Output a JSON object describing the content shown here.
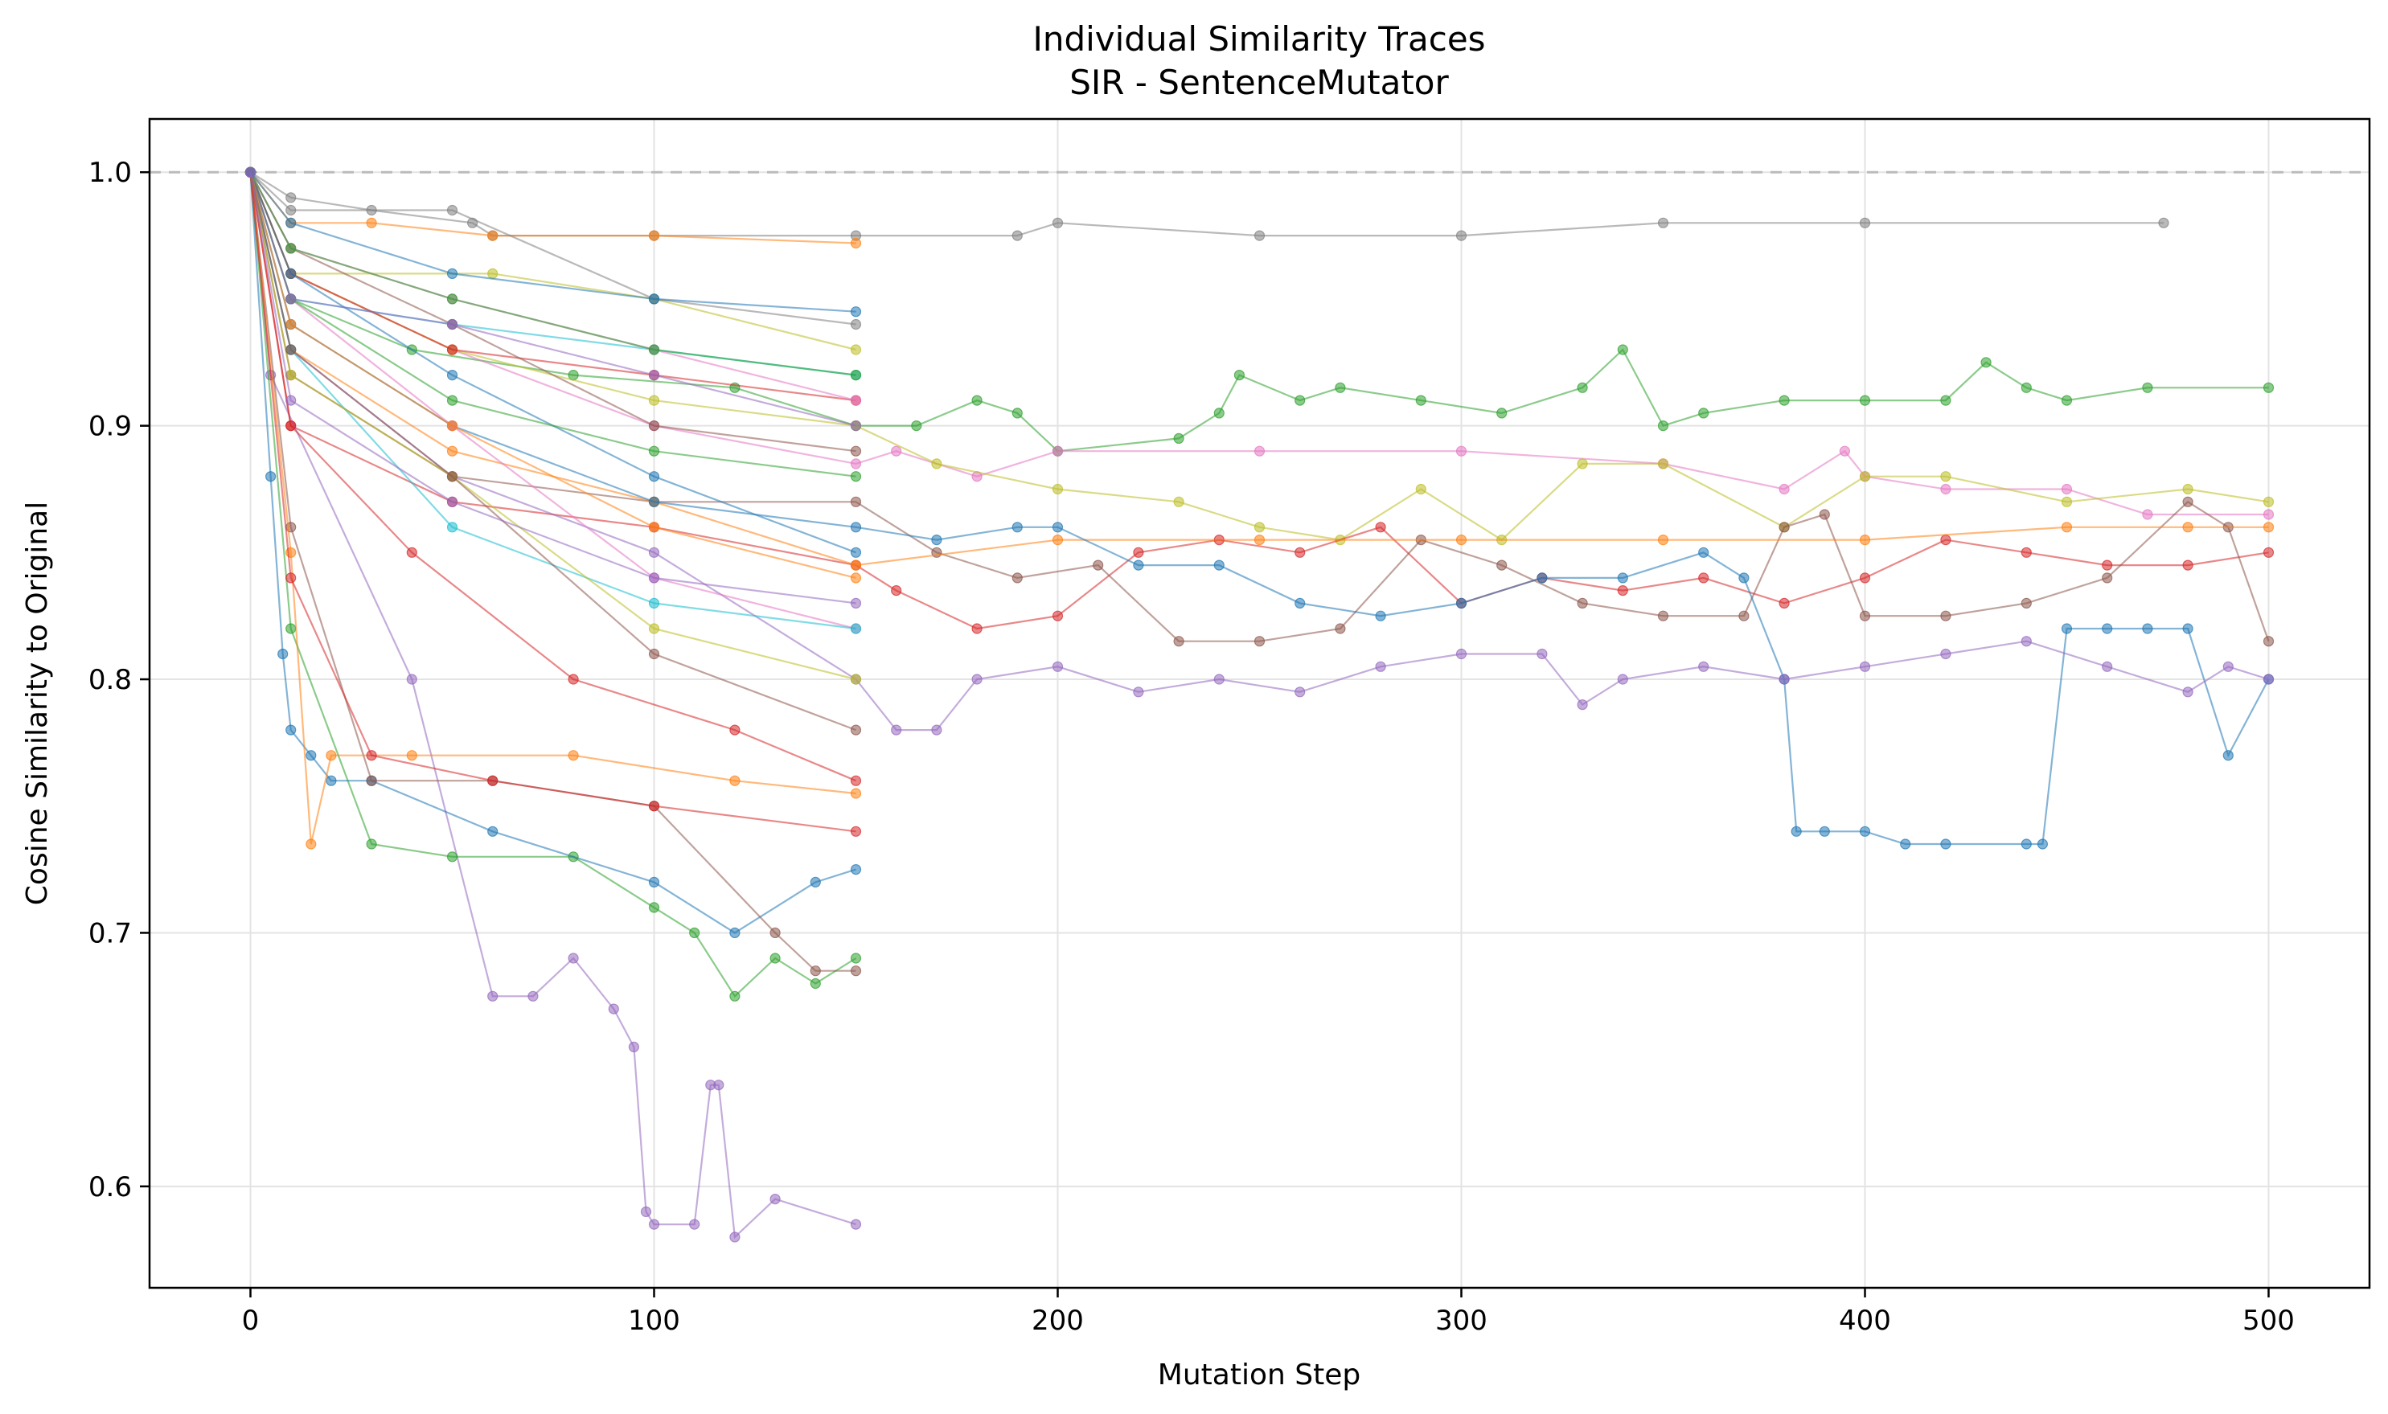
{
  "chart_data": {
    "type": "line",
    "title": "Individual Similarity Traces",
    "subtitle": "SIR - SentenceMutator",
    "xlabel": "Mutation Step",
    "ylabel": "Cosine Similarity to Original",
    "xlim": [
      -25,
      525
    ],
    "ylim": [
      0.56,
      1.021
    ],
    "xticks": [
      0,
      100,
      200,
      300,
      400,
      500
    ],
    "yticks": [
      0.6,
      0.7,
      0.8,
      0.9,
      1.0
    ],
    "xtick_labels": [
      "0",
      "100",
      "200",
      "300",
      "400",
      "500"
    ],
    "ytick_labels": [
      "0.6",
      "0.7",
      "0.8",
      "0.9",
      "1.0"
    ],
    "grid": true,
    "reference_line": {
      "y": 1.0,
      "style": "dashed",
      "color": "#bbbbbb"
    },
    "colors": [
      "#1f77b4",
      "#ff7f0e",
      "#2ca02c",
      "#d62728",
      "#9467bd",
      "#8c564b",
      "#e377c2",
      "#7f7f7f",
      "#bcbd22",
      "#17becf"
    ],
    "series": [
      {
        "color": "#7f7f7f",
        "x": [
          0,
          10,
          30,
          55,
          60,
          100,
          150,
          190,
          200,
          250,
          300,
          350,
          400,
          474
        ],
        "y": [
          1.0,
          0.99,
          0.985,
          0.98,
          0.975,
          0.975,
          0.975,
          0.975,
          0.98,
          0.975,
          0.975,
          0.98,
          0.98,
          0.98
        ]
      },
      {
        "color": "#2ca02c",
        "x": [
          0,
          10,
          40,
          80,
          120,
          150,
          165,
          180,
          190,
          200,
          230,
          240,
          245,
          260,
          270,
          290,
          310,
          330,
          340,
          350,
          360,
          380,
          400,
          420,
          430,
          440,
          450,
          470,
          500
        ],
        "y": [
          1.0,
          0.95,
          0.93,
          0.92,
          0.915,
          0.9,
          0.9,
          0.91,
          0.905,
          0.89,
          0.895,
          0.905,
          0.92,
          0.91,
          0.915,
          0.91,
          0.905,
          0.915,
          0.93,
          0.9,
          0.905,
          0.91,
          0.91,
          0.91,
          0.925,
          0.915,
          0.91,
          0.915,
          0.915
        ]
      },
      {
        "color": "#e377c2",
        "x": [
          0,
          10,
          50,
          100,
          150,
          160,
          180,
          200,
          250,
          300,
          350,
          380,
          395,
          400,
          420,
          450,
          470,
          500
        ],
        "y": [
          1.0,
          0.96,
          0.93,
          0.9,
          0.885,
          0.89,
          0.88,
          0.89,
          0.89,
          0.89,
          0.885,
          0.875,
          0.89,
          0.88,
          0.875,
          0.875,
          0.865,
          0.865
        ]
      },
      {
        "color": "#bcbd22",
        "x": [
          0,
          10,
          50,
          100,
          150,
          170,
          200,
          230,
          250,
          270,
          290,
          310,
          330,
          350,
          380,
          400,
          420,
          450,
          480,
          500
        ],
        "y": [
          1.0,
          0.96,
          0.93,
          0.91,
          0.9,
          0.885,
          0.875,
          0.87,
          0.86,
          0.855,
          0.875,
          0.855,
          0.885,
          0.885,
          0.86,
          0.88,
          0.88,
          0.87,
          0.875,
          0.87
        ]
      },
      {
        "color": "#d62728",
        "x": [
          0,
          10,
          50,
          100,
          150,
          160,
          180,
          200,
          220,
          240,
          260,
          280,
          300,
          320,
          340,
          360,
          380,
          400,
          420,
          440,
          460,
          480,
          500
        ],
        "y": [
          1.0,
          0.9,
          0.87,
          0.86,
          0.845,
          0.835,
          0.82,
          0.825,
          0.85,
          0.855,
          0.85,
          0.86,
          0.83,
          0.84,
          0.835,
          0.84,
          0.83,
          0.84,
          0.855,
          0.85,
          0.845,
          0.845,
          0.85
        ]
      },
      {
        "color": "#8c564b",
        "x": [
          0,
          10,
          50,
          100,
          150,
          170,
          190,
          210,
          230,
          250,
          270,
          290,
          310,
          330,
          350,
          370,
          380,
          390,
          400,
          420,
          440,
          460,
          480,
          490,
          500
        ],
        "y": [
          1.0,
          0.92,
          0.88,
          0.87,
          0.87,
          0.85,
          0.84,
          0.845,
          0.815,
          0.815,
          0.82,
          0.855,
          0.845,
          0.83,
          0.825,
          0.825,
          0.86,
          0.865,
          0.825,
          0.825,
          0.83,
          0.84,
          0.87,
          0.86,
          0.815
        ]
      },
      {
        "color": "#ff7f0e",
        "x": [
          0,
          10,
          50,
          100,
          150,
          200,
          250,
          300,
          350,
          400,
          450,
          480,
          500
        ],
        "y": [
          1.0,
          0.93,
          0.89,
          0.87,
          0.845,
          0.855,
          0.855,
          0.855,
          0.855,
          0.855,
          0.86,
          0.86,
          0.86
        ]
      },
      {
        "color": "#1f77b4",
        "x": [
          0,
          10,
          50,
          100,
          150,
          170,
          190,
          200,
          220,
          240,
          260,
          280,
          300,
          320,
          340,
          360,
          370,
          380,
          383,
          390,
          400,
          410,
          420,
          440,
          444,
          450,
          460,
          470,
          480,
          490,
          500
        ],
        "y": [
          1.0,
          0.94,
          0.9,
          0.87,
          0.86,
          0.855,
          0.86,
          0.86,
          0.845,
          0.845,
          0.83,
          0.825,
          0.83,
          0.84,
          0.84,
          0.85,
          0.84,
          0.8,
          0.74,
          0.74,
          0.74,
          0.735,
          0.735,
          0.735,
          0.735,
          0.82,
          0.82,
          0.82,
          0.82,
          0.77,
          0.8
        ]
      },
      {
        "color": "#9467bd",
        "x": [
          0,
          10,
          50,
          100,
          150,
          160,
          170,
          180,
          200,
          220,
          240,
          260,
          280,
          300,
          320,
          330,
          340,
          360,
          380,
          400,
          420,
          440,
          460,
          480,
          490,
          500
        ],
        "y": [
          1.0,
          0.93,
          0.88,
          0.85,
          0.8,
          0.78,
          0.78,
          0.8,
          0.805,
          0.795,
          0.8,
          0.795,
          0.805,
          0.81,
          0.81,
          0.79,
          0.8,
          0.805,
          0.8,
          0.805,
          0.81,
          0.815,
          0.805,
          0.795,
          0.805,
          0.8
        ]
      },
      {
        "color": "#9467bd",
        "x": [
          0,
          5,
          40,
          60,
          70,
          80,
          90,
          95,
          98,
          100,
          110,
          114,
          116,
          120,
          130,
          150
        ],
        "y": [
          1.0,
          0.92,
          0.8,
          0.675,
          0.675,
          0.69,
          0.67,
          0.655,
          0.59,
          0.585,
          0.585,
          0.64,
          0.64,
          0.58,
          0.595,
          0.585
        ]
      },
      {
        "color": "#2ca02c",
        "x": [
          0,
          10,
          30,
          50,
          80,
          100,
          110,
          120,
          130,
          140,
          150
        ],
        "y": [
          1.0,
          0.82,
          0.735,
          0.73,
          0.73,
          0.71,
          0.7,
          0.675,
          0.69,
          0.68,
          0.69
        ]
      },
      {
        "color": "#1f77b4",
        "x": [
          0,
          5,
          8,
          10,
          15,
          20,
          30,
          60,
          100,
          120,
          140,
          150
        ],
        "y": [
          1.0,
          0.88,
          0.81,
          0.78,
          0.77,
          0.76,
          0.76,
          0.74,
          0.72,
          0.7,
          0.72,
          0.725
        ]
      },
      {
        "color": "#8c564b",
        "x": [
          0,
          10,
          30,
          60,
          100,
          130,
          140,
          150
        ],
        "y": [
          1.0,
          0.86,
          0.76,
          0.76,
          0.75,
          0.7,
          0.685,
          0.685
        ]
      },
      {
        "color": "#ff7f0e",
        "x": [
          0,
          10,
          15,
          20,
          40,
          80,
          120,
          150
        ],
        "y": [
          1.0,
          0.85,
          0.735,
          0.77,
          0.77,
          0.77,
          0.76,
          0.755
        ]
      },
      {
        "color": "#d62728",
        "x": [
          0,
          10,
          30,
          60,
          100,
          150
        ],
        "y": [
          1.0,
          0.84,
          0.77,
          0.76,
          0.75,
          0.74
        ]
      },
      {
        "color": "#17becf",
        "x": [
          0,
          10,
          50,
          100,
          150
        ],
        "y": [
          1.0,
          0.95,
          0.94,
          0.93,
          0.92
        ]
      },
      {
        "color": "#e377c2",
        "x": [
          0,
          10,
          50,
          100,
          150
        ],
        "y": [
          1.0,
          0.95,
          0.9,
          0.84,
          0.82
        ]
      },
      {
        "color": "#bcbd22",
        "x": [
          0,
          10,
          60,
          100,
          150
        ],
        "y": [
          1.0,
          0.96,
          0.96,
          0.95,
          0.93
        ]
      },
      {
        "color": "#ff7f0e",
        "x": [
          0,
          10,
          30,
          60,
          100,
          150
        ],
        "y": [
          1.0,
          0.98,
          0.98,
          0.975,
          0.975,
          0.972
        ]
      },
      {
        "color": "#7f7f7f",
        "x": [
          0,
          10,
          50,
          100,
          150
        ],
        "y": [
          1.0,
          0.985,
          0.985,
          0.95,
          0.94
        ]
      },
      {
        "color": "#d62728",
        "x": [
          0,
          10,
          50,
          100,
          150
        ],
        "y": [
          1.0,
          0.96,
          0.93,
          0.92,
          0.91
        ]
      },
      {
        "color": "#1f77b4",
        "x": [
          0,
          10,
          50,
          100,
          150
        ],
        "y": [
          1.0,
          0.96,
          0.92,
          0.88,
          0.85
        ]
      },
      {
        "color": "#2ca02c",
        "x": [
          0,
          10,
          50,
          100,
          150
        ],
        "y": [
          1.0,
          0.95,
          0.91,
          0.89,
          0.88
        ]
      },
      {
        "color": "#8c564b",
        "x": [
          0,
          10,
          50,
          100,
          150
        ],
        "y": [
          1.0,
          0.97,
          0.94,
          0.9,
          0.89
        ]
      },
      {
        "color": "#9467bd",
        "x": [
          0,
          10,
          50,
          100,
          150
        ],
        "y": [
          1.0,
          0.95,
          0.94,
          0.92,
          0.9
        ]
      },
      {
        "color": "#17becf",
        "x": [
          0,
          10,
          50,
          100,
          150
        ],
        "y": [
          1.0,
          0.93,
          0.86,
          0.83,
          0.82
        ]
      },
      {
        "color": "#bcbd22",
        "x": [
          0,
          10,
          50,
          100,
          150
        ],
        "y": [
          1.0,
          0.92,
          0.88,
          0.82,
          0.8
        ]
      },
      {
        "color": "#ff7f0e",
        "x": [
          0,
          10,
          50,
          100,
          150
        ],
        "y": [
          1.0,
          0.94,
          0.9,
          0.86,
          0.84
        ]
      },
      {
        "color": "#e377c2",
        "x": [
          0,
          10,
          50,
          100,
          150
        ],
        "y": [
          1.0,
          0.97,
          0.95,
          0.93,
          0.91
        ]
      },
      {
        "color": "#d62728",
        "x": [
          0,
          10,
          40,
          80,
          120,
          150
        ],
        "y": [
          1.0,
          0.9,
          0.85,
          0.8,
          0.78,
          0.76
        ]
      },
      {
        "color": "#2ca02c",
        "x": [
          0,
          10,
          50,
          100,
          150
        ],
        "y": [
          1.0,
          0.97,
          0.95,
          0.93,
          0.92
        ]
      },
      {
        "color": "#8c564b",
        "x": [
          0,
          10,
          50,
          100,
          150
        ],
        "y": [
          1.0,
          0.93,
          0.88,
          0.81,
          0.78
        ]
      },
      {
        "color": "#1f77b4",
        "x": [
          0,
          10,
          50,
          100,
          150
        ],
        "y": [
          1.0,
          0.98,
          0.96,
          0.95,
          0.945
        ]
      },
      {
        "color": "#9467bd",
        "x": [
          0,
          10,
          50,
          100,
          150
        ],
        "y": [
          1.0,
          0.91,
          0.87,
          0.84,
          0.83
        ]
      }
    ]
  }
}
